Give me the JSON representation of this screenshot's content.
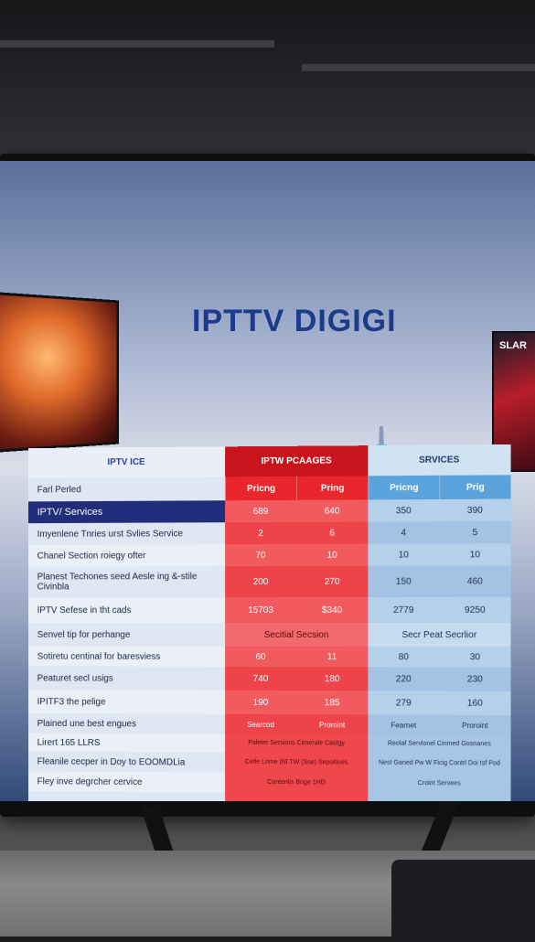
{
  "screen": {
    "title": "IPTTV DIGIGI",
    "side_thumb_text": "SLAR"
  },
  "table": {
    "col_left_header": "IPTV ICE",
    "col_mid_header": "IPTW PCAAGES",
    "col_right_header": "SRVICES",
    "sub_headers": [
      "Pricng",
      "Pring",
      "Pricng",
      "Prig"
    ],
    "rows": [
      {
        "label": "Farl Perled",
        "type": "subhead"
      },
      {
        "label": "IPTV/ Services",
        "type": "band",
        "values": [
          "689",
          "640",
          "350",
          "390"
        ]
      },
      {
        "label": "Imyenlene Tnries urst Svlies Service",
        "values": [
          "2",
          "6",
          "4",
          "5"
        ]
      },
      {
        "label": "Chanel Section roiegy ofter",
        "values": [
          "70",
          "10",
          "10",
          "10"
        ]
      },
      {
        "label": "Planest Techones seed Aesle ing &-stile Civinbla",
        "values": [
          "200",
          "270",
          "150",
          "460"
        ]
      },
      {
        "label": "IPTV Sefese in tht cads",
        "values": [
          "15703",
          "$340",
          "2779",
          "9250"
        ]
      },
      {
        "label": "Senvel tip for perhange",
        "type": "section",
        "values": [
          "Secitial Secsion",
          "Secr Peat Secrlior"
        ]
      },
      {
        "label": "Sotiretu centinal for baresviess",
        "values": [
          "60",
          "11",
          "80",
          "30"
        ]
      },
      {
        "label": "Peaturet secl usigs",
        "values": [
          "740",
          "180",
          "220",
          "230"
        ]
      },
      {
        "label": "IPITF3 the pelige",
        "values": [
          "190",
          "185",
          "279",
          "160"
        ]
      },
      {
        "label": "Plained une best engues",
        "values": [
          "Searcod",
          "Proroint",
          "Fearnet",
          "Proroint"
        ]
      },
      {
        "label": "Lirert 165 LLRS",
        "values": [
          "Paleter Sersions Cenerale Castgy",
          "Reolaf Servlonel Cinmed Gosnanes"
        ]
      },
      {
        "label": "Fleanile cecper in Doy to EOOMDLia",
        "values": [
          "Cetle Lnme (Nl TW (Sse) Sepoitices",
          "Nest Ganed Pw W Ficig Contrl Doi tsf Pod"
        ]
      },
      {
        "label": "Fley inve degrcher cervice",
        "values": [
          "Contenlis Bnge 1HD",
          "Croint Servees"
        ]
      }
    ]
  },
  "colors": {
    "left_col": "#dfe6f4",
    "band": "#1f2d7a",
    "mid_header": "#c9141c",
    "mid_col": "#f0474c",
    "right_header": "#cfe3f2",
    "right_col": "#a7c6e6"
  }
}
